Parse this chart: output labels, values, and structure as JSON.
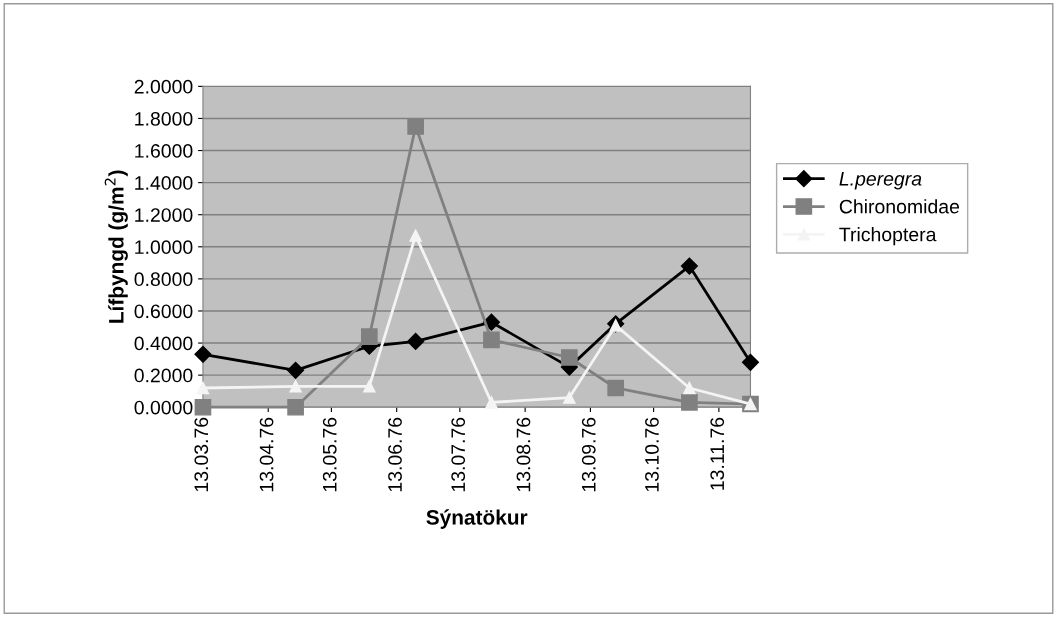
{
  "chart_data": {
    "type": "line",
    "xlabel": "Sýnatökur",
    "ylabel": "Lífþyngd (g/m$^{2}$)",
    "x": [
      "1976-03-13",
      "1976-04-26",
      "1976-05-31",
      "1976-06-22",
      "1976-07-28",
      "1976-09-03",
      "1976-09-25",
      "1976-10-30",
      "1976-11-28"
    ],
    "series": [
      {
        "name": "L.peregra",
        "color": "#000000",
        "marker": "diamond",
        "values": [
          0.33,
          0.23,
          0.38,
          0.41,
          0.53,
          0.25,
          0.52,
          0.88,
          0.28
        ]
      },
      {
        "name": "Chironomidae",
        "color": "#808080",
        "marker": "square",
        "values": [
          0.0,
          0.0,
          0.44,
          1.75,
          0.42,
          0.31,
          0.12,
          0.03,
          0.02
        ]
      },
      {
        "name": "Trichoptera",
        "color": "#f4f4f4",
        "marker": "triangle",
        "values": [
          0.12,
          0.13,
          0.13,
          1.07,
          0.03,
          0.06,
          0.51,
          0.12,
          0.02
        ]
      }
    ],
    "xlim": [
      "1976-03-13",
      "1976-11-28"
    ],
    "xticks": [
      {
        "value": "1976-03-13",
        "label": "13.03.76"
      },
      {
        "value": "1976-04-13",
        "label": "13.04.76"
      },
      {
        "value": "1976-05-13",
        "label": "13.05.76"
      },
      {
        "value": "1976-06-13",
        "label": "13.06.76"
      },
      {
        "value": "1976-07-13",
        "label": "13.07.76"
      },
      {
        "value": "1976-08-13",
        "label": "13.08.76"
      },
      {
        "value": "1976-09-13",
        "label": "13.09.76"
      },
      {
        "value": "1976-10-13",
        "label": "13.10.76"
      },
      {
        "value": "1976-11-13",
        "label": "13.11.76"
      }
    ],
    "ylim": [
      0,
      2
    ],
    "yticks": [
      {
        "value": 0,
        "label": "0.0000"
      },
      {
        "value": 0.2,
        "label": "0.2000"
      },
      {
        "value": 0.4,
        "label": "0.4000"
      },
      {
        "value": 0.6,
        "label": "0.6000"
      },
      {
        "value": 0.8,
        "label": "0.8000"
      },
      {
        "value": 1.0,
        "label": "1.0000"
      },
      {
        "value": 1.2,
        "label": "1.2000"
      },
      {
        "value": 1.4,
        "label": "1.4000"
      },
      {
        "value": 1.6,
        "label": "1.6000"
      },
      {
        "value": 1.8,
        "label": "1.8000"
      },
      {
        "value": 2.0,
        "label": "2.0000"
      }
    ],
    "grid": "y",
    "legend": "right",
    "line_style": "solid"
  }
}
